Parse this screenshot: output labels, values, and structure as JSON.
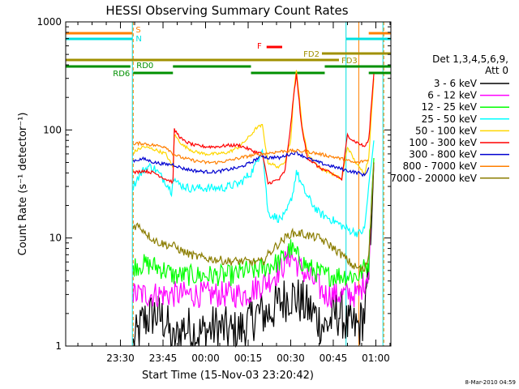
{
  "chart_data": {
    "type": "line",
    "title": "HESSI Observing Summary Count Rates",
    "xlabel": "Start Time (15-Nov-03 23:20:42)",
    "ylabel": "Count Rate (s⁻¹ detector⁻¹)",
    "yscale": "log",
    "ylim": [
      1,
      1000
    ],
    "xlim_minutes": [
      -9.3,
      105.3
    ],
    "x_tick_minutes": [
      10,
      25,
      40,
      55,
      70,
      85,
      100
    ],
    "x_tick_labels": [
      "23:30",
      "23:45",
      "00:00",
      "00:15",
      "00:30",
      "00:45",
      "01:00"
    ],
    "y_tick_values": [
      1,
      10,
      100,
      1000
    ],
    "y_tick_labels": [
      "1",
      "10",
      "100",
      "1000"
    ],
    "grid": false,
    "legend_position": "right",
    "legend_title": "Det 1,3,4,5,6,9,",
    "legend_subtitle": "Att 0",
    "timestamp": "8-Mar-2010 04:59",
    "flags": [
      {
        "label": "S",
        "color": "#ff8000",
        "segments": [
          [
            -9.3,
            14.2
          ],
          [
            97.5,
            105.3
          ]
        ]
      },
      {
        "label": "N",
        "color": "#00e0e0",
        "segments": [
          [
            -9.3,
            14.2
          ],
          [
            89.5,
            105.3
          ]
        ]
      },
      {
        "label": "F",
        "color": "#ff0000",
        "segments": [
          [
            61.5,
            67
          ]
        ]
      },
      {
        "label": "FD2",
        "color": "#a09000",
        "segments": [
          [
            81,
            105.3
          ]
        ]
      },
      {
        "label": "FD3",
        "color": "#a09000",
        "segments": [
          [
            -9.3,
            87
          ]
        ]
      },
      {
        "label": "RD0",
        "color": "#009000",
        "segments": [
          [
            -9.3,
            13.5
          ],
          [
            28.5,
            56
          ],
          [
            82,
            105.3
          ]
        ]
      },
      {
        "label": "RD6",
        "color": "#009000",
        "segments": [
          [
            14.5,
            28.5
          ],
          [
            56,
            82
          ],
          [
            97.5,
            105.3
          ]
        ]
      }
    ],
    "series": [
      {
        "name": "3 - 6 keV",
        "color": "#000000",
        "x": [
          14.5,
          18,
          22,
          26,
          28.5,
          32,
          38,
          44,
          50,
          54,
          58,
          62,
          66,
          70,
          74,
          78,
          82,
          84,
          86,
          88,
          90,
          92,
          94,
          96,
          97.5,
          98.5,
          99.3
        ],
        "y": [
          1,
          1.7,
          2,
          1.7,
          1,
          1.5,
          1.3,
          1.5,
          1.3,
          1.5,
          2,
          2,
          2.5,
          3,
          2.5,
          2,
          1.5,
          1.7,
          2,
          2,
          1.5,
          1.5,
          1.5,
          2,
          4,
          20,
          50
        ]
      },
      {
        "name": "6 - 12 keV",
        "color": "#ff00ff",
        "x": [
          14.5,
          18,
          22,
          26,
          28.5,
          32,
          38,
          44,
          50,
          54,
          58,
          62,
          66,
          70,
          74,
          78,
          82,
          86,
          90,
          94,
          97.5,
          98.5,
          99.3
        ],
        "y": [
          3,
          3,
          3,
          3,
          3,
          3,
          3,
          3,
          3,
          3,
          3.5,
          4,
          5,
          7,
          5,
          4,
          3,
          3,
          3,
          3,
          5,
          20,
          50
        ]
      },
      {
        "name": "12 - 25 keV",
        "color": "#00ff00",
        "x": [
          14.5,
          18,
          22,
          26,
          28.5,
          32,
          38,
          44,
          50,
          54,
          58,
          62,
          66,
          70,
          74,
          78,
          82,
          86,
          90,
          94,
          97.5,
          98.5,
          99.3
        ],
        "y": [
          5.5,
          5.7,
          5.5,
          5,
          4.5,
          4.5,
          4.5,
          4.5,
          4.5,
          5,
          5,
          5.5,
          6,
          8,
          6,
          5,
          4.5,
          4.5,
          4.5,
          4.5,
          6,
          25,
          55
        ]
      },
      {
        "name": "25 - 50 keV",
        "color": "#00ffff",
        "x": [
          14.5,
          16,
          18,
          20,
          22,
          24,
          26,
          28,
          28.5,
          30,
          34,
          40,
          46,
          52,
          56,
          58,
          60,
          62,
          66,
          68,
          70,
          71,
          72,
          74,
          76,
          78,
          80,
          82,
          84,
          86,
          88,
          90,
          92,
          94,
          96,
          97.5,
          98.5,
          99.3
        ],
        "y": [
          30,
          36,
          42,
          46,
          44,
          38,
          33,
          27,
          38,
          32,
          29,
          29,
          29,
          32,
          40,
          50,
          70,
          17,
          15,
          16,
          22,
          28,
          42,
          30,
          24,
          20,
          17,
          16,
          15,
          14,
          13,
          12,
          11.5,
          11,
          12,
          30,
          50,
          80
        ]
      },
      {
        "name": "50 - 100 keV",
        "color": "#ffd700",
        "x": [
          14.5,
          18,
          22,
          26,
          28.5,
          29,
          32,
          36,
          40,
          44,
          48,
          52,
          56,
          58,
          60,
          62,
          66,
          68,
          70,
          71,
          72,
          74,
          76,
          80,
          84,
          88,
          90,
          92,
          94,
          96,
          97.5,
          98.5,
          99.3
        ],
        "y": [
          62,
          70,
          66,
          60,
          45,
          90,
          72,
          63,
          60,
          60,
          62,
          70,
          90,
          105,
          110,
          50,
          45,
          52,
          80,
          200,
          370,
          110,
          60,
          45,
          40,
          35,
          70,
          55,
          45,
          40,
          55,
          150,
          300
        ]
      },
      {
        "name": "100 - 300 keV",
        "color": "#ff0000",
        "x": [
          14.5,
          18,
          22,
          26,
          28.5,
          29,
          32,
          36,
          40,
          44,
          48,
          52,
          56,
          58,
          60,
          62,
          66,
          68,
          70,
          71,
          72,
          74,
          76,
          80,
          84,
          88,
          90,
          92,
          94,
          96,
          97.5,
          98.5,
          99.3
        ],
        "y": [
          40,
          42,
          40,
          35,
          33,
          100,
          80,
          72,
          70,
          70,
          72,
          72,
          65,
          62,
          60,
          32,
          35,
          42,
          110,
          200,
          330,
          100,
          55,
          45,
          40,
          35,
          90,
          80,
          75,
          70,
          80,
          180,
          330
        ]
      },
      {
        "name": "300 - 800 keV",
        "color": "#0000d0",
        "x": [
          14.5,
          18,
          22,
          26,
          28.5,
          32,
          36,
          40,
          44,
          48,
          52,
          56,
          58,
          60,
          62,
          64,
          66,
          68,
          70,
          72,
          74,
          78,
          82,
          86,
          90,
          94,
          96,
          97.5
        ],
        "y": [
          52,
          54,
          50,
          48,
          48,
          44,
          42,
          41,
          41,
          43,
          45,
          50,
          54,
          58,
          55,
          56,
          55,
          58,
          60,
          62,
          58,
          52,
          48,
          45,
          42,
          40,
          38,
          45
        ]
      },
      {
        "name": "800 - 7000 keV",
        "color": "#ff7f00",
        "x": [
          14.5,
          16,
          18,
          22,
          26,
          28.5,
          32,
          36,
          40,
          44,
          48,
          52,
          56,
          60,
          64,
          68,
          72,
          76,
          80,
          84,
          88,
          92,
          94,
          96,
          97.5
        ],
        "y": [
          72,
          75,
          75,
          72,
          70,
          60,
          55,
          52,
          50,
          50,
          52,
          55,
          58,
          60,
          62,
          64,
          64,
          63,
          60,
          57,
          54,
          50,
          50,
          52,
          52
        ]
      },
      {
        "name": "7000 - 20000 keV",
        "color": "#8b7d00",
        "x": [
          14.5,
          16,
          18,
          20,
          22,
          24,
          26,
          28.5,
          32,
          36,
          40,
          44,
          48,
          52,
          56,
          60,
          62,
          64,
          66,
          68,
          70,
          72,
          74,
          76,
          80,
          84,
          88,
          92,
          96,
          97.5,
          98.5,
          99.3
        ],
        "y": [
          13,
          13,
          12,
          10.5,
          9.5,
          9,
          8.7,
          8.5,
          7.5,
          6.8,
          6.5,
          6.3,
          6.1,
          6.1,
          6,
          6,
          7,
          8,
          9,
          10,
          11,
          11,
          11,
          10.5,
          10,
          8.5,
          7,
          5.5,
          5,
          7,
          20,
          50
        ]
      }
    ]
  }
}
